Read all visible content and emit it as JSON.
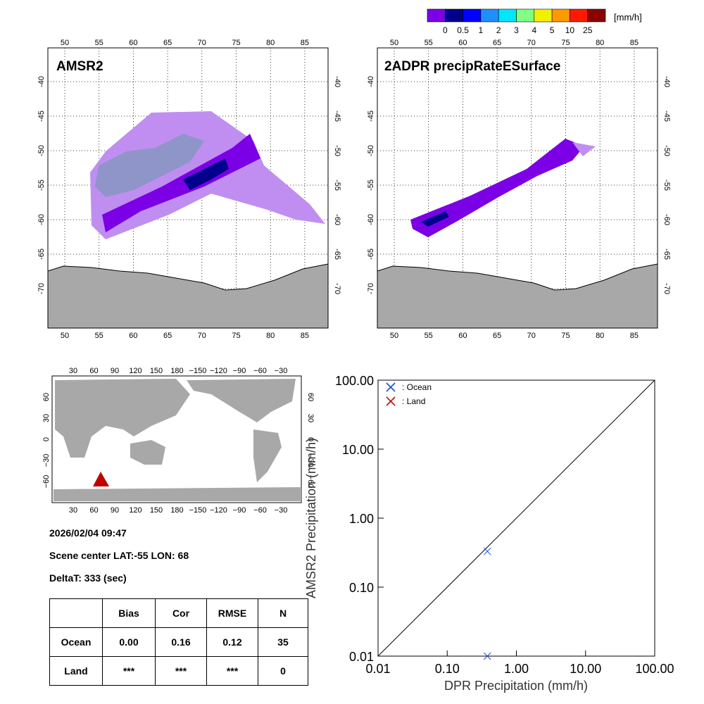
{
  "colorbar": {
    "unit": "[mm/h]",
    "labels": [
      "0",
      "0.5",
      "1",
      "2",
      "3",
      "4",
      "5",
      "10",
      "25"
    ],
    "colors": [
      "#7b00e6",
      "#00008c",
      "#0000ff",
      "#1f8fff",
      "#00e6ff",
      "#80ff80",
      "#f0f000",
      "#ff9900",
      "#ff1a00",
      "#8c0000"
    ]
  },
  "maps": [
    {
      "title": "AMSR2",
      "lon_ticks": [
        "50",
        "55",
        "60",
        "65",
        "70",
        "75",
        "80",
        "85"
      ],
      "lat_ticks": [
        "-40",
        "-45",
        "-50",
        "-55",
        "-60",
        "-65",
        "-70"
      ]
    },
    {
      "title": "2ADPR precipRateESurface",
      "lon_ticks": [
        "50",
        "55",
        "60",
        "65",
        "70",
        "75",
        "80",
        "85"
      ],
      "lat_ticks": [
        "-40",
        "-45",
        "-50",
        "-55",
        "-60",
        "-65",
        "-70"
      ]
    }
  ],
  "world_map": {
    "lon_ticks": [
      "30",
      "60",
      "90",
      "120",
      "150",
      "180",
      "−150",
      "−120",
      "−90",
      "−60",
      "−30"
    ],
    "lat_ticks": [
      "60",
      "30",
      "0",
      "−30",
      "−60"
    ],
    "marker_color": "#c00000"
  },
  "info": {
    "datetime": "2026/02/04 09:47",
    "scene_center": "Scene center LAT:-55   LON:  68",
    "delta_t": "DeltaT:  333 (sec)"
  },
  "stats": {
    "headers": [
      "",
      "Bias",
      "Cor",
      "RMSE",
      "N"
    ],
    "rows": [
      [
        "Ocean",
        "0.00",
        "0.16",
        "0.12",
        "35"
      ],
      [
        "Land",
        "***",
        "***",
        "***",
        "0"
      ]
    ]
  },
  "chart_data": {
    "type": "scatter",
    "xlabel": "DPR Precipitation (mm/h)",
    "ylabel": "AMSR2 Precipitation (mm/h)",
    "xscale": "log",
    "yscale": "log",
    "xlim": [
      0.01,
      100
    ],
    "ylim": [
      0.01,
      100
    ],
    "tick_labels": [
      "0.01",
      "0.10",
      "1.00",
      "10.00",
      "100.00"
    ],
    "legend_position": "top-left",
    "series": [
      {
        "name": ": Ocean",
        "color": "#1a50d0",
        "points": [
          [
            0.38,
            0.33
          ],
          [
            0.38,
            0.01
          ]
        ]
      },
      {
        "name": ": Land",
        "color": "#c01010",
        "points": []
      }
    ]
  }
}
